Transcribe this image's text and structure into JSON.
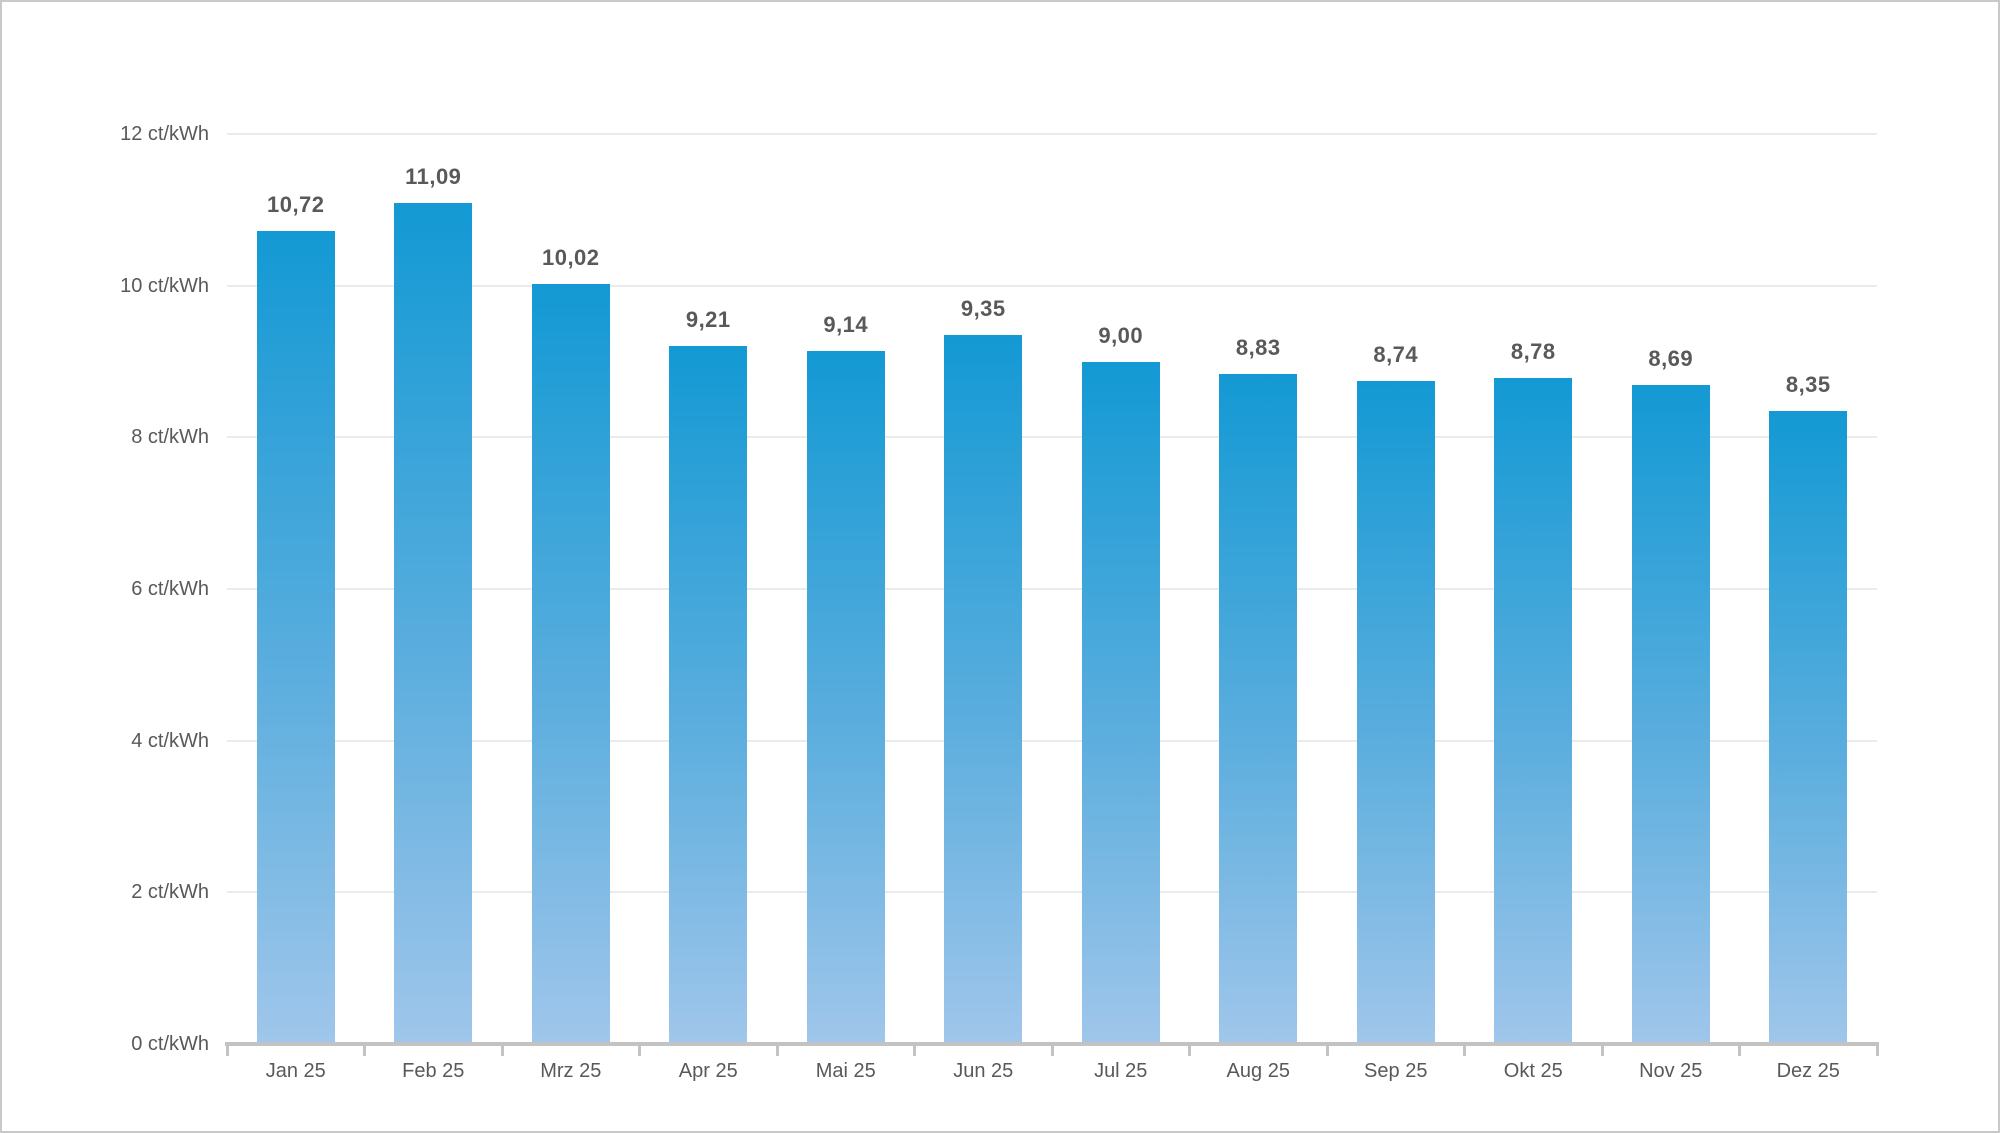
{
  "chart_data": {
    "type": "bar",
    "title": "",
    "unit": "ct/kWh",
    "categories": [
      "Jan 25",
      "Feb 25",
      "Mrz 25",
      "Apr 25",
      "Mai 25",
      "Jun 25",
      "Jul 25",
      "Aug 25",
      "Sep 25",
      "Okt 25",
      "Nov 25",
      "Dez 25"
    ],
    "values": [
      10.72,
      11.09,
      10.02,
      9.21,
      9.14,
      9.35,
      9.0,
      8.83,
      8.74,
      8.78,
      8.69,
      8.35
    ],
    "value_labels": [
      "10,72",
      "11,09",
      "10,02",
      "9,21",
      "9,14",
      "9,35",
      "9,00",
      "8,83",
      "8,74",
      "8,78",
      "8,69",
      "8,35"
    ],
    "y_ticks": [
      {
        "value": 0,
        "label": "0 ct/kWh"
      },
      {
        "value": 2,
        "label": "2 ct/kWh"
      },
      {
        "value": 4,
        "label": "4 ct/kWh"
      },
      {
        "value": 6,
        "label": "6 ct/kWh"
      },
      {
        "value": 8,
        "label": "8 ct/kWh"
      },
      {
        "value": 10,
        "label": "10 ct/kWh"
      },
      {
        "value": 12,
        "label": "12 ct/kWh"
      }
    ],
    "ylim": [
      0,
      12
    ],
    "grid": true,
    "legend_position": "none",
    "colors": {
      "bar_gradient_top": "#1399d4",
      "bar_gradient_bottom": "#a0c6eb",
      "gridline": "#ebebeb",
      "axis_line": "#c3c3c3",
      "text": "#595959",
      "frame_border": "#c9c9c9",
      "background": "#ffffff"
    }
  }
}
